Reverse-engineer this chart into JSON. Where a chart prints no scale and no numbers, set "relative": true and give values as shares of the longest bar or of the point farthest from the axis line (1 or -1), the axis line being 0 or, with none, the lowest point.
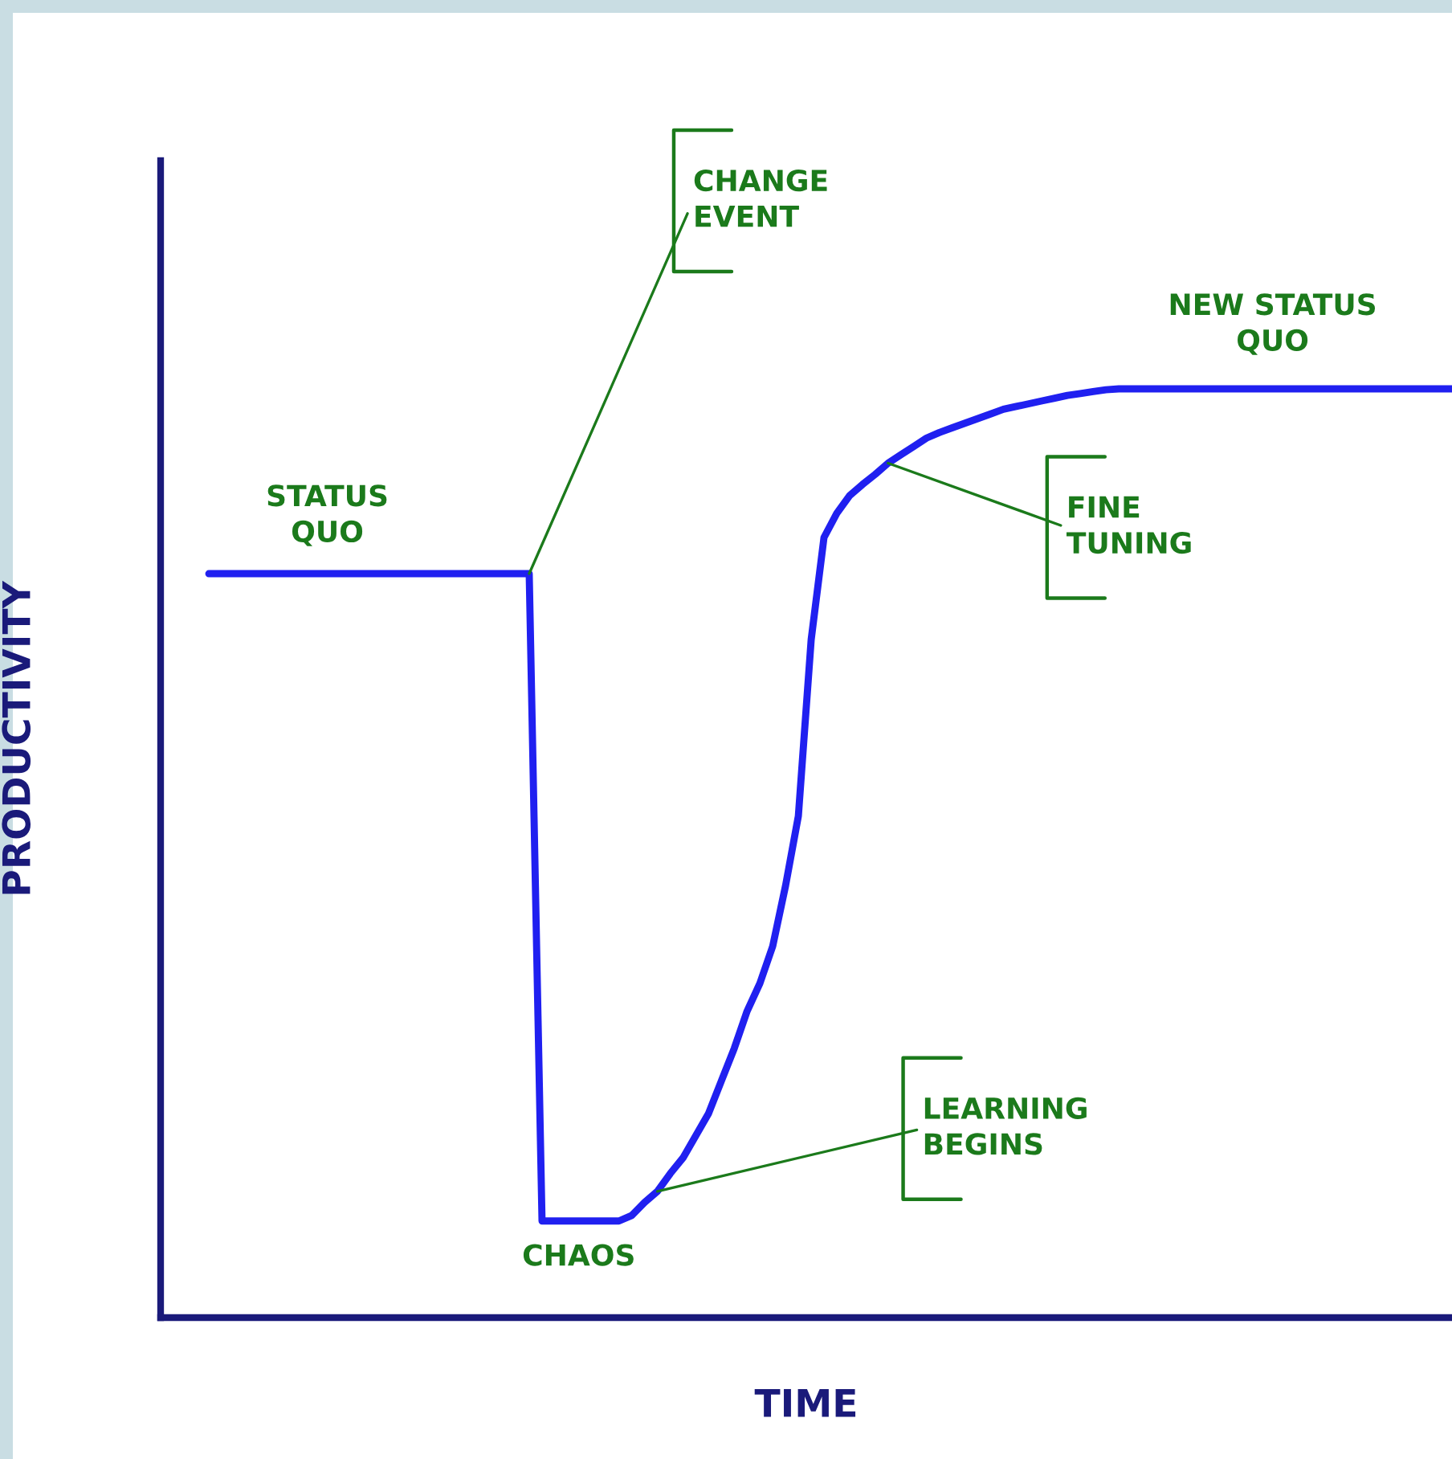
{
  "chart_data": {
    "type": "line",
    "relative": true,
    "xlabel": "TIME",
    "ylabel": "PRODUCTIVITY",
    "categories": [
      null,
      null,
      null,
      null,
      null,
      null,
      null,
      null,
      null,
      null,
      null,
      null,
      null,
      null,
      null,
      null,
      null,
      null,
      null,
      null,
      null,
      null,
      null,
      null,
      null,
      null,
      null,
      null,
      null,
      null,
      null,
      null,
      null,
      null,
      null,
      null,
      null,
      null,
      null,
      null,
      null,
      null,
      null,
      null,
      null,
      null,
      null,
      null,
      null,
      null,
      null,
      null,
      null,
      null,
      null,
      null,
      null,
      null,
      null,
      null,
      null,
      null,
      null,
      null,
      null,
      null,
      null,
      null,
      null,
      null,
      null,
      null,
      null,
      null,
      null,
      null,
      null,
      null,
      null,
      null,
      null,
      null,
      null,
      null,
      null,
      null,
      null,
      null,
      null,
      null,
      null,
      null,
      null,
      null,
      null,
      null,
      null,
      null
    ],
    "series": [
      {
        "color": "#2020f0",
        "values": [
          0.801,
          0.801,
          0.801,
          0.801,
          0.801,
          0.801,
          0.801,
          0.801,
          0.801,
          0.801,
          0.801,
          0.801,
          0.801,
          0.801,
          0.801,
          0.801,
          0.801,
          0.801,
          0.801,
          0.801,
          0.801,
          0.801,
          0.801,
          0.801,
          0.801,
          0.801,
          0.104,
          0.104,
          0.104,
          0.104,
          0.104,
          0.104,
          0.104,
          0.11,
          0.124,
          0.136,
          0.155,
          0.172,
          0.196,
          0.22,
          0.255,
          0.29,
          0.33,
          0.36,
          0.4,
          0.465,
          0.54,
          0.73,
          0.84,
          0.866,
          0.885,
          0.897,
          0.908,
          0.92,
          0.929,
          0.938,
          0.947,
          0.953,
          0.958,
          0.963,
          0.968,
          0.973,
          0.978,
          0.981,
          0.984,
          0.987,
          0.99,
          0.993,
          0.995,
          0.997,
          0.999,
          1.0,
          1.0,
          1.0,
          1.0,
          1.0,
          1.0,
          1.0,
          1.0,
          1.0,
          1.0,
          1.0,
          1.0,
          1.0,
          1.0,
          1.0,
          1.0,
          1.0,
          1.0,
          1.0,
          1.0,
          1.0,
          1.0,
          1.0,
          1.0,
          1.0,
          1.0,
          1.0
        ]
      }
    ],
    "annotations": [
      "STATUS\nQUO",
      "CHANGE\nEVENT",
      "NEW STATUS\nQUO",
      "FINE\nTUNING",
      "LEARNING\nBEGINS",
      "CHAOS"
    ],
    "line_style": "solid"
  }
}
